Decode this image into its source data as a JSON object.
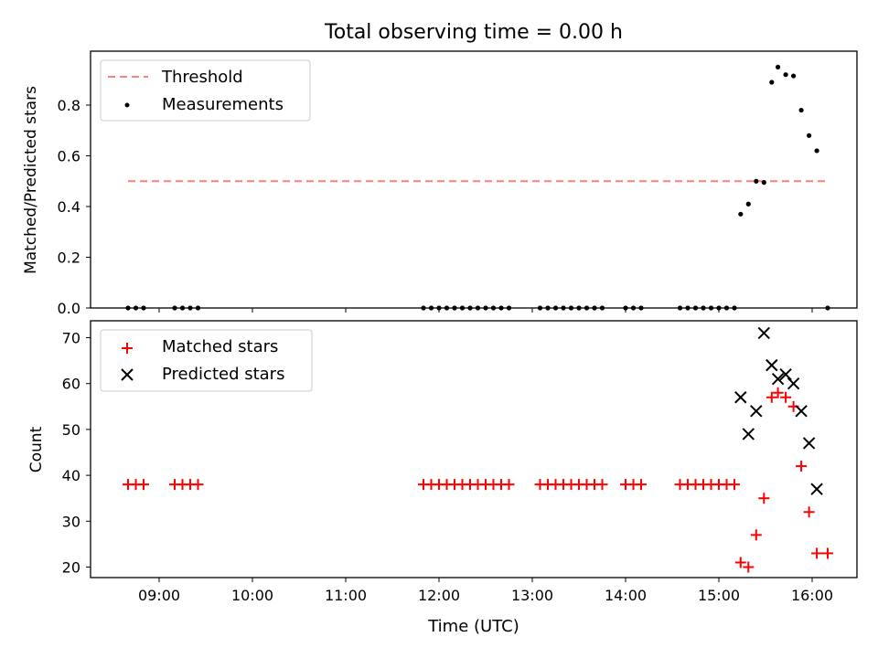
{
  "title": "Total observing time = 0.00 h",
  "xlabel": "Time (UTC)",
  "xticks": [
    "09:00",
    "10:00",
    "11:00",
    "12:00",
    "13:00",
    "14:00",
    "15:00",
    "16:00"
  ],
  "colors": {
    "threshold": "#ff7f7f",
    "measurements": "#000000",
    "matched": "#ff0000",
    "predicted": "#000000"
  },
  "chart_data": [
    {
      "type": "scatter",
      "ylabel": "Matched/Predicted stars",
      "ylim": [
        0,
        1.0
      ],
      "yticks": [
        "0.0",
        "0.2",
        "0.4",
        "0.6",
        "0.8"
      ],
      "legend": {
        "placement": "upper left",
        "entries": [
          "Threshold",
          "Measurements"
        ]
      },
      "series": [
        {
          "name": "Threshold",
          "style": "dashed-line",
          "x": [
            "08:40",
            "16:10"
          ],
          "values": [
            0.5,
            0.5
          ]
        },
        {
          "name": "Measurements",
          "style": "dot",
          "x": [
            "08:40",
            "08:45",
            "08:50",
            "09:10",
            "09:15",
            "09:20",
            "09:25",
            "11:50",
            "11:55",
            "12:00",
            "12:05",
            "12:10",
            "12:15",
            "12:20",
            "12:25",
            "12:30",
            "12:35",
            "12:40",
            "12:45",
            "13:05",
            "13:10",
            "13:15",
            "13:20",
            "13:25",
            "13:30",
            "13:35",
            "13:40",
            "13:45",
            "14:00",
            "14:05",
            "14:10",
            "14:35",
            "14:40",
            "14:45",
            "14:50",
            "14:55",
            "15:00",
            "15:05",
            "15:10",
            "15:14",
            "15:19",
            "15:24",
            "15:29",
            "15:34",
            "15:38",
            "15:43",
            "15:48",
            "15:53",
            "15:58",
            "16:03",
            "16:10"
          ],
          "values": [
            0,
            0,
            0,
            0,
            0,
            0,
            0,
            0,
            0,
            0,
            0,
            0,
            0,
            0,
            0,
            0,
            0,
            0,
            0,
            0,
            0,
            0,
            0,
            0,
            0,
            0,
            0,
            0,
            0,
            0,
            0,
            0,
            0,
            0,
            0,
            0,
            0,
            0,
            0,
            0.37,
            0.41,
            0.5,
            0.495,
            0.89,
            0.95,
            0.92,
            0.915,
            0.78,
            0.68,
            0.62,
            0.0
          ]
        }
      ]
    },
    {
      "type": "scatter",
      "ylabel": "Count",
      "ylim": [
        17.5,
        73.5
      ],
      "yticks": [
        "20",
        "30",
        "40",
        "50",
        "60",
        "70"
      ],
      "legend": {
        "placement": "upper left",
        "entries": [
          "Matched stars",
          "Predicted stars"
        ]
      },
      "series": [
        {
          "name": "Matched stars",
          "marker": "plus",
          "x": [
            "08:40",
            "08:45",
            "08:50",
            "09:10",
            "09:15",
            "09:20",
            "09:25",
            "11:50",
            "11:55",
            "12:00",
            "12:05",
            "12:10",
            "12:15",
            "12:20",
            "12:25",
            "12:30",
            "12:35",
            "12:40",
            "12:45",
            "13:05",
            "13:10",
            "13:15",
            "13:20",
            "13:25",
            "13:30",
            "13:35",
            "13:40",
            "13:45",
            "14:00",
            "14:05",
            "14:10",
            "14:35",
            "14:40",
            "14:45",
            "14:50",
            "14:55",
            "15:00",
            "15:05",
            "15:10",
            "15:14",
            "15:19",
            "15:24",
            "15:29",
            "15:34",
            "15:38",
            "15:43",
            "15:48",
            "15:53",
            "15:58",
            "16:03",
            "16:10"
          ],
          "values": [
            38,
            38,
            38,
            38,
            38,
            38,
            38,
            38,
            38,
            38,
            38,
            38,
            38,
            38,
            38,
            38,
            38,
            38,
            38,
            38,
            38,
            38,
            38,
            38,
            38,
            38,
            38,
            38,
            38,
            38,
            38,
            38,
            38,
            38,
            38,
            38,
            38,
            38,
            38,
            21,
            20,
            27,
            35,
            57,
            58,
            57,
            55,
            42,
            32,
            23,
            23
          ]
        },
        {
          "name": "Predicted stars",
          "marker": "x",
          "x": [
            "15:14",
            "15:19",
            "15:24",
            "15:29",
            "15:34",
            "15:38",
            "15:43",
            "15:48",
            "15:53",
            "15:58",
            "16:03"
          ],
          "values": [
            57,
            49,
            54,
            71,
            64,
            61,
            62,
            60,
            54,
            47,
            37
          ]
        }
      ]
    }
  ]
}
